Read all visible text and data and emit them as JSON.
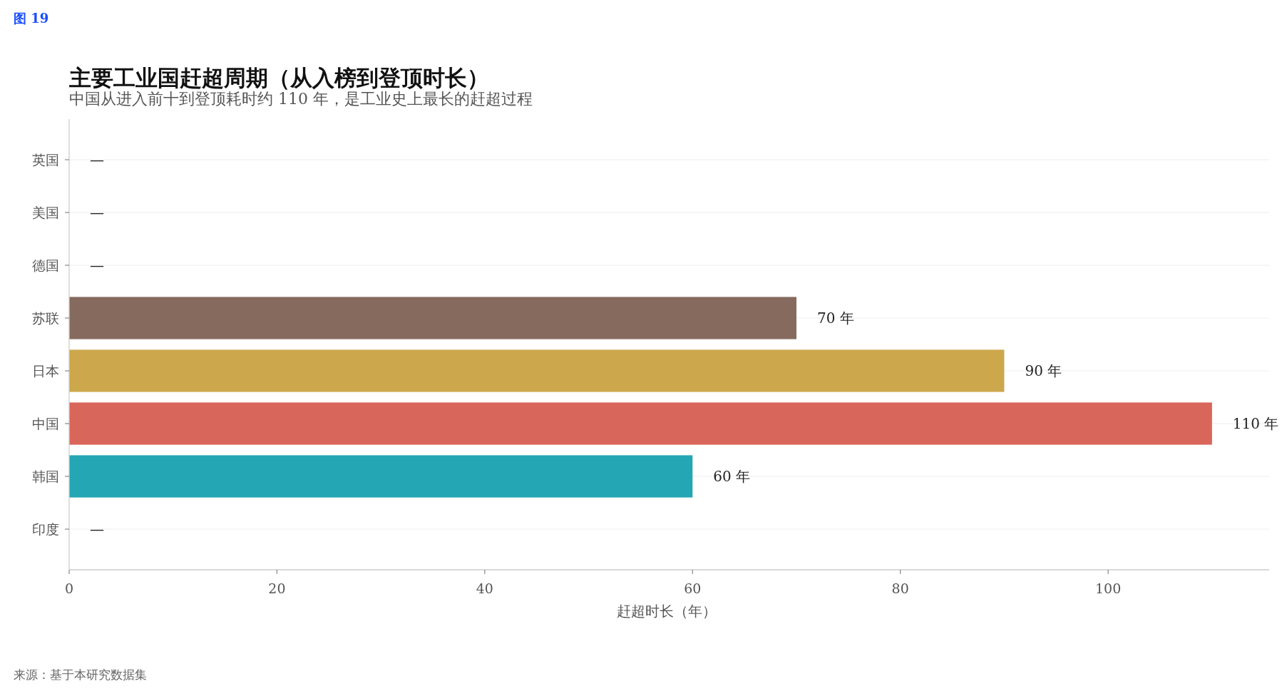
{
  "chart_data": {
    "type": "bar",
    "orientation": "horizontal",
    "title": "主要工业国赶超周期（从入榜到登顶时长）",
    "subtitle": "中国从进入前十到登顶耗时约 110 年，是工业史上最长的赶超过程",
    "xlabel": "赶超时长（年）",
    "annotations": [
      "图 19",
      "来源：基于本研究数据集"
    ],
    "categories": [
      "英国",
      "美国",
      "德国",
      "苏联",
      "日本",
      "中国",
      "韩国",
      "印度"
    ],
    "values": [
      null,
      null,
      null,
      70,
      90,
      110,
      60,
      null
    ],
    "colors": [
      null,
      null,
      null,
      "#866a5e",
      "#cca74c",
      "#d9665a",
      "#24a6b4",
      null
    ],
    "value_labels": [
      "—",
      "—",
      "—",
      "70 年",
      "90 年",
      "110 年",
      "60 年",
      "—"
    ],
    "xlim": [
      0,
      115.5
    ],
    "xticks": [
      0,
      20,
      40,
      60,
      80,
      100
    ],
    "grid": "y"
  }
}
